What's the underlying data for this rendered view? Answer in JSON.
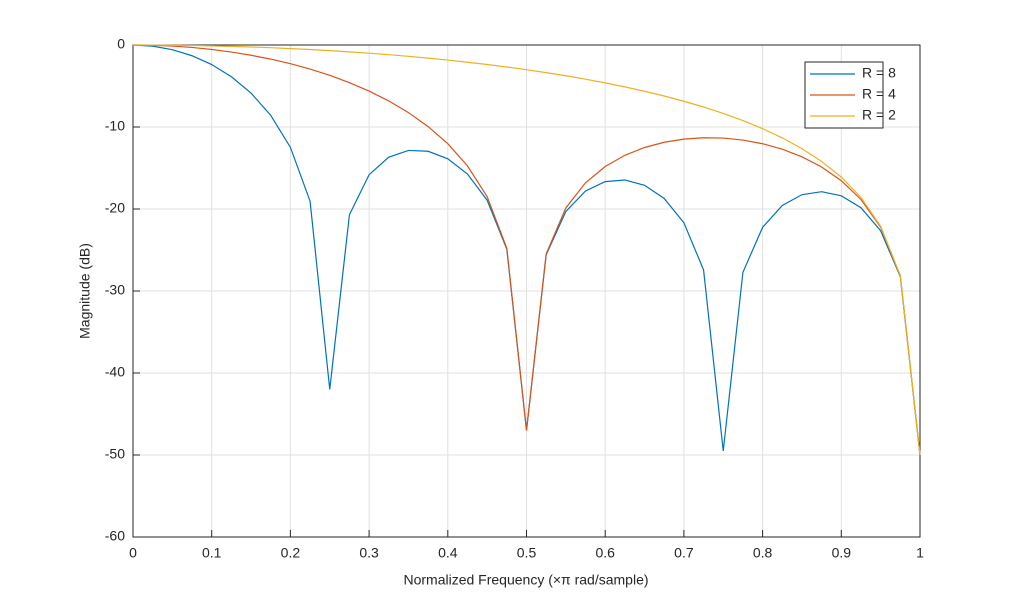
{
  "chart_data": {
    "type": "line",
    "xlabel": "Normalized Frequency (×π rad/sample)",
    "ylabel": "Magnitude (dB)",
    "x": [
      0,
      0.025,
      0.05,
      0.075,
      0.1,
      0.125,
      0.15,
      0.175,
      0.2,
      0.225,
      0.25,
      0.275,
      0.3,
      0.325,
      0.35,
      0.375,
      0.4,
      0.425,
      0.45,
      0.475,
      0.5,
      0.525,
      0.55,
      0.575,
      0.6,
      0.625,
      0.65,
      0.675,
      0.7,
      0.725,
      0.75,
      0.775,
      0.8,
      0.825,
      0.85,
      0.875,
      0.9,
      0.925,
      0.95,
      0.975,
      1
    ],
    "series": [
      {
        "name": "R = 8",
        "color": "#0072BD",
        "values": [
          0,
          -0.14,
          -0.57,
          -1.31,
          -2.38,
          -3.87,
          -5.86,
          -8.58,
          -12.48,
          -19.05,
          -42,
          -20.7,
          -15.82,
          -13.68,
          -12.86,
          -12.96,
          -13.88,
          -15.74,
          -18.93,
          -24.9,
          -47,
          -25.58,
          -20.3,
          -17.8,
          -16.66,
          -16.46,
          -17.11,
          -18.72,
          -21.68,
          -27.43,
          -49.5,
          -27.71,
          -22.24,
          -19.57,
          -18.25,
          -17.89,
          -18.39,
          -19.84,
          -22.65,
          -28.25,
          -50
        ]
      },
      {
        "name": "R = 4",
        "color": "#D95319",
        "values": [
          0,
          -0.03,
          -0.13,
          -0.3,
          -0.54,
          -0.86,
          -1.25,
          -1.72,
          -2.28,
          -2.93,
          -3.7,
          -4.59,
          -5.62,
          -6.82,
          -8.24,
          -9.95,
          -12.04,
          -14.74,
          -18.49,
          -24.79,
          -47,
          -25.47,
          -19.86,
          -16.8,
          -14.82,
          -13.45,
          -12.5,
          -11.86,
          -11.48,
          -11.31,
          -11.35,
          -11.59,
          -12.04,
          -12.71,
          -13.64,
          -14.88,
          -16.55,
          -18.84,
          -22.22,
          -28.15,
          -50
        ]
      },
      {
        "name": "R = 2",
        "color": "#EDB120",
        "values": [
          0,
          -0.01,
          -0.03,
          -0.06,
          -0.11,
          -0.17,
          -0.24,
          -0.33,
          -0.44,
          -0.55,
          -0.69,
          -0.84,
          -1.0,
          -1.18,
          -1.38,
          -1.6,
          -1.84,
          -2.1,
          -2.38,
          -2.68,
          -3.01,
          -3.37,
          -3.75,
          -4.17,
          -4.62,
          -5.11,
          -5.64,
          -6.22,
          -6.86,
          -7.56,
          -8.34,
          -9.22,
          -10.2,
          -11.33,
          -12.64,
          -14.2,
          -16.11,
          -18.6,
          -22.11,
          -28.12,
          -50
        ]
      }
    ],
    "xlim": [
      0,
      1
    ],
    "xticks": [
      0,
      0.1,
      0.2,
      0.3,
      0.4,
      0.5,
      0.6,
      0.7,
      0.8,
      0.9,
      1
    ],
    "ylim": [
      -60,
      0
    ],
    "yticks": [
      -60,
      -50,
      -40,
      -30,
      -20,
      -10,
      0
    ],
    "grid": true,
    "legend": "northeast"
  }
}
